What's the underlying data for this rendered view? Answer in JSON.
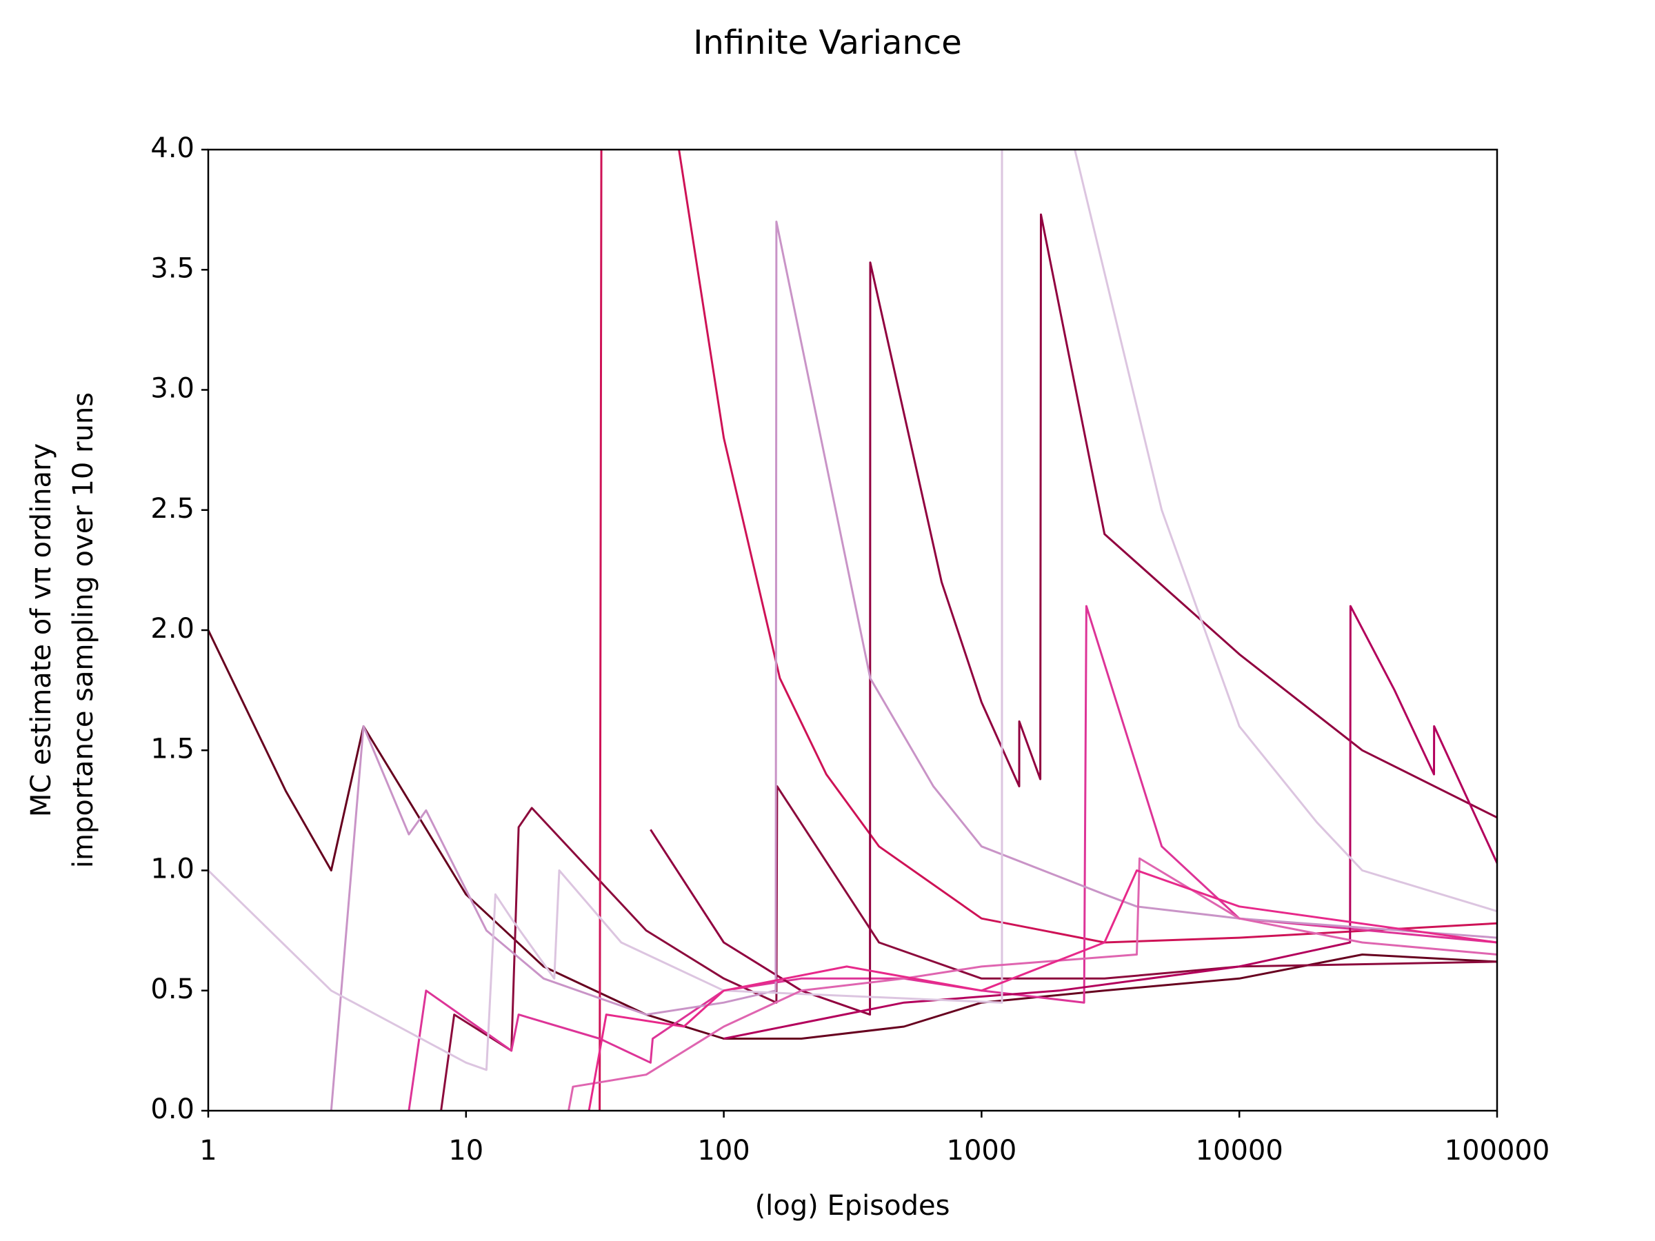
{
  "chart_data": {
    "type": "line",
    "title": "Infinite Variance",
    "xlabel": "(log) Episodes",
    "ylabel": [
      "MC estimate of vπ ordinary",
      "importance sampling over 10 runs"
    ],
    "xscale": "log",
    "xlim": [
      1,
      100000
    ],
    "xticks": [
      1,
      10,
      100,
      1000,
      10000,
      100000
    ],
    "ylim": [
      0,
      4
    ],
    "yticks": [
      {
        "value": 0,
        "label": "0.0"
      },
      0.5,
      {
        "value": 1,
        "label": "1.0"
      },
      1.5,
      {
        "value": 2,
        "label": "2.0"
      },
      2.5,
      {
        "value": 3,
        "label": "3.0"
      },
      3.5,
      {
        "value": 4,
        "label": "4.0"
      }
    ],
    "grid": false,
    "series": [
      {
        "color": "#67001f",
        "x": [
          1,
          2,
          3,
          4,
          10,
          20,
          50,
          100,
          200,
          500,
          1000,
          3000,
          10000,
          30000,
          100000
        ],
        "values": [
          2.0,
          1.33,
          1.0,
          1.6,
          0.9,
          0.6,
          0.4,
          0.3,
          0.3,
          0.35,
          0.45,
          0.5,
          0.55,
          0.65,
          0.62
        ]
      },
      {
        "color": "#8c0a3c",
        "x": [
          8,
          9,
          15,
          16,
          18,
          50,
          100,
          160,
          161,
          400,
          1000,
          3000,
          10000,
          100000
        ],
        "values": [
          0,
          0.4,
          0.25,
          1.18,
          1.26,
          0.75,
          0.55,
          0.45,
          1.35,
          0.7,
          0.55,
          0.55,
          0.6,
          0.62
        ]
      },
      {
        "color": "#ce1256",
        "x": [
          33,
          34,
          67,
          100,
          165,
          250,
          400,
          1000,
          3000,
          10000,
          100000
        ],
        "values": [
          0,
          8,
          4,
          2.8,
          1.8,
          1.4,
          1.1,
          0.8,
          0.7,
          0.72,
          0.78
        ]
      },
      {
        "color": "#dd3497",
        "x": [
          6,
          7,
          15,
          16,
          33,
          52,
          53,
          100,
          200,
          500,
          1000,
          2500,
          2550,
          5000,
          10000,
          100000
        ],
        "values": [
          0,
          0.5,
          0.25,
          0.4,
          0.3,
          0.2,
          0.3,
          0.5,
          0.55,
          0.55,
          0.5,
          0.45,
          2.1,
          1.1,
          0.8,
          0.7
        ]
      },
      {
        "color": "#91003f",
        "x": [
          52,
          100,
          200,
          369,
          370,
          700,
          1000,
          1400,
          1401,
          1690,
          1700,
          3000,
          10000,
          30000,
          100000
        ],
        "values": [
          1.17,
          0.7,
          0.5,
          0.4,
          3.53,
          2.2,
          1.7,
          1.35,
          1.62,
          1.38,
          3.73,
          2.4,
          1.9,
          1.5,
          1.22
        ]
      },
      {
        "color": "#b3005c",
        "x": [
          100,
          500,
          2000,
          10000,
          26900,
          27000,
          40000,
          56900,
          57000,
          100000
        ],
        "values": [
          0.3,
          0.45,
          0.5,
          0.6,
          0.7,
          2.1,
          1.75,
          1.4,
          1.6,
          1.03
        ]
      },
      {
        "color": "#c994c7",
        "x": [
          3,
          4,
          6,
          7,
          12,
          20,
          50,
          100,
          159,
          160,
          370,
          650,
          1000,
          3000,
          4000,
          10000,
          100000
        ],
        "values": [
          0,
          1.6,
          1.15,
          1.25,
          0.75,
          0.55,
          0.4,
          0.45,
          0.5,
          3.7,
          1.8,
          1.35,
          1.1,
          0.9,
          0.85,
          0.8,
          0.72
        ]
      },
      {
        "color": "#dcc5e0",
        "x": [
          1,
          3,
          10,
          12,
          13,
          15,
          22,
          23,
          40,
          100,
          1200,
          1201,
          2300,
          5000,
          10000,
          20000,
          30000,
          100000
        ],
        "values": [
          1.0,
          0.5,
          0.2,
          0.17,
          0.9,
          0.8,
          0.55,
          1.0,
          0.7,
          0.5,
          0.45,
          8,
          4,
          2.5,
          1.6,
          1.2,
          1.0,
          0.83
        ]
      },
      {
        "color": "#df65b0",
        "x": [
          25,
          26,
          50,
          100,
          200,
          500,
          1000,
          4000,
          4100,
          10000,
          30000,
          100000
        ],
        "values": [
          0,
          0.1,
          0.15,
          0.35,
          0.5,
          0.55,
          0.6,
          0.65,
          1.05,
          0.8,
          0.7,
          0.65
        ]
      },
      {
        "color": "#e7298a",
        "x": [
          30,
          35,
          70,
          100,
          300,
          1000,
          3000,
          4000,
          10000,
          100000
        ],
        "values": [
          0,
          0.4,
          0.35,
          0.5,
          0.6,
          0.5,
          0.7,
          1.0,
          0.85,
          0.7
        ]
      }
    ]
  }
}
